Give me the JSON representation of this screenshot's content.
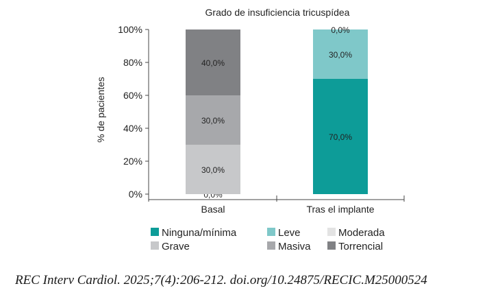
{
  "chart_data": {
    "type": "bar",
    "stacked": true,
    "title": "Grado de insuficiencia tricuspídea",
    "xlabel": "",
    "ylabel": "% de pacientes",
    "ylim": [
      0,
      100
    ],
    "yticks": [
      "0%",
      "20%",
      "40%",
      "60%",
      "80%",
      "100%"
    ],
    "categories": [
      "Basal",
      "Tras el implante"
    ],
    "grid": false,
    "legend_position": "bottom",
    "series": [
      {
        "name": "Ninguna/mínima",
        "color": "#0d9c98",
        "values": [
          0,
          70
        ],
        "labels": [
          "0,0%",
          "70,0%"
        ]
      },
      {
        "name": "Leve",
        "color": "#7fc8c9",
        "values": [
          0,
          30
        ],
        "labels": [
          "",
          "30,0%"
        ]
      },
      {
        "name": "Moderada",
        "color": "#e3e3e3",
        "values": [
          0,
          0
        ],
        "labels": [
          "",
          "0,0%"
        ]
      },
      {
        "name": "Grave",
        "color": "#c7c8ca",
        "values": [
          30,
          0
        ],
        "labels": [
          "30,0%",
          ""
        ]
      },
      {
        "name": "Masiva",
        "color": "#a7a8ab",
        "values": [
          30,
          0
        ],
        "labels": [
          "30,0%",
          ""
        ]
      },
      {
        "name": "Torrencial",
        "color": "#808184",
        "values": [
          40,
          0
        ],
        "labels": [
          "40,0%",
          ""
        ]
      }
    ]
  },
  "citation": "REC Interv Cardiol. 2025;7(4):206-212. doi.org/10.24875/RECIC.M25000524"
}
